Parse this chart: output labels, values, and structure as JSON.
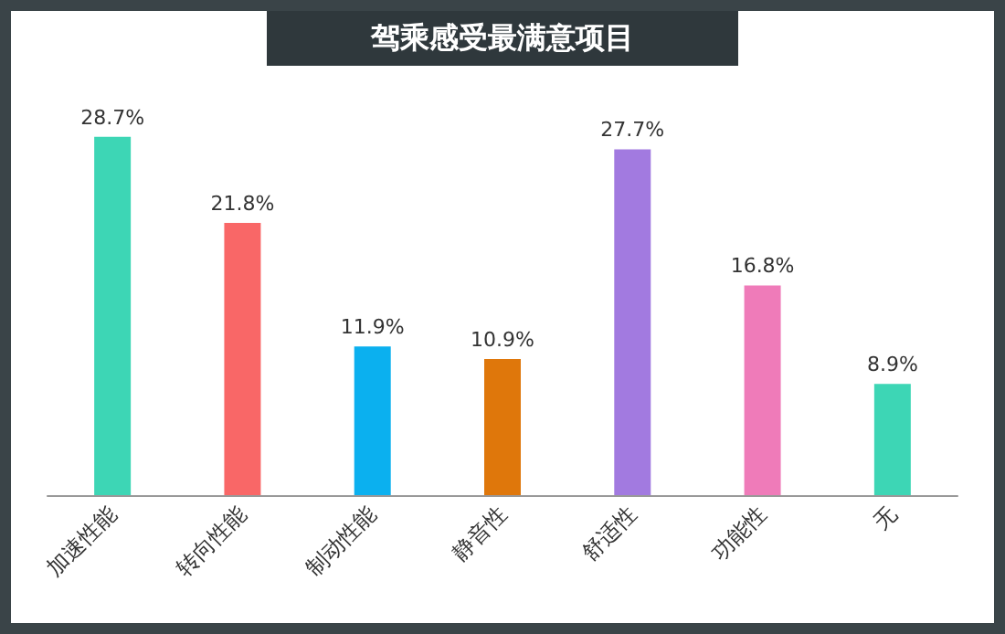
{
  "chart_data": {
    "type": "bar",
    "title": "驾乘感受最满意项目",
    "categories": [
      "加速性能",
      "转向性能",
      "制动性能",
      "静音性",
      "舒适性",
      "功能性",
      "无"
    ],
    "values": [
      28.7,
      21.8,
      11.9,
      10.9,
      27.7,
      16.8,
      8.9
    ],
    "colors": [
      "#3dd6b5",
      "#f96767",
      "#0bb0ef",
      "#df770b",
      "#a27ae0",
      "#ef7bb9",
      "#3dd6b5"
    ],
    "value_labels": [
      "28.7%",
      "21.8%",
      "11.9%",
      "10.9%",
      "27.7%",
      "16.8%",
      "8.9%"
    ]
  }
}
